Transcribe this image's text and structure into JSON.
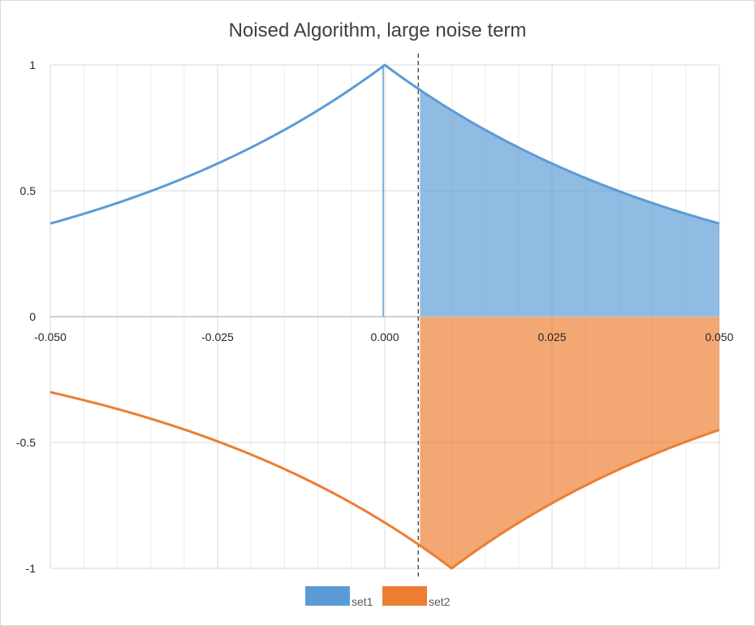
{
  "chart_data": {
    "type": "area",
    "title": "Noised Algorithm, large noise term",
    "xlabel": "",
    "ylabel": "",
    "xlim": [
      -0.05,
      0.05
    ],
    "ylim": [
      -1,
      1
    ],
    "x_ticks": [
      -0.05,
      -0.025,
      0.0,
      0.025,
      0.05
    ],
    "x_tick_labels": [
      "-0.050",
      "-0.025",
      "0.000",
      "0.025",
      "0.050"
    ],
    "y_ticks": [
      -1,
      -0.5,
      0,
      0.5,
      1
    ],
    "y_tick_labels": [
      "-1",
      "-0.5",
      "0",
      "0.5",
      "1"
    ],
    "grid": true,
    "legend_position": "bottom",
    "threshold_x": 0.005,
    "series": [
      {
        "name": "set1",
        "color": "#5b9bd5",
        "fill_color": "#5b9bd5",
        "shaded_from_x": 0.005,
        "x": [
          -0.05,
          -0.04,
          -0.03,
          -0.02,
          -0.01,
          0.0,
          0.01,
          0.02,
          0.03,
          0.04,
          0.05
        ],
        "y": [
          0.37,
          0.45,
          0.55,
          0.67,
          0.82,
          1.0,
          0.82,
          0.67,
          0.55,
          0.45,
          0.37
        ]
      },
      {
        "name": "set2",
        "color": "#ed7d31",
        "fill_color": "#ed7d31",
        "shaded_from_x": 0.005,
        "x": [
          -0.05,
          -0.04,
          -0.03,
          -0.02,
          -0.01,
          0.0,
          0.01,
          0.02,
          0.03,
          0.04,
          0.05
        ],
        "y": [
          -0.3,
          -0.37,
          -0.45,
          -0.55,
          -0.67,
          -0.82,
          -1.0,
          -0.82,
          -0.67,
          -0.55,
          -0.45
        ]
      }
    ]
  }
}
